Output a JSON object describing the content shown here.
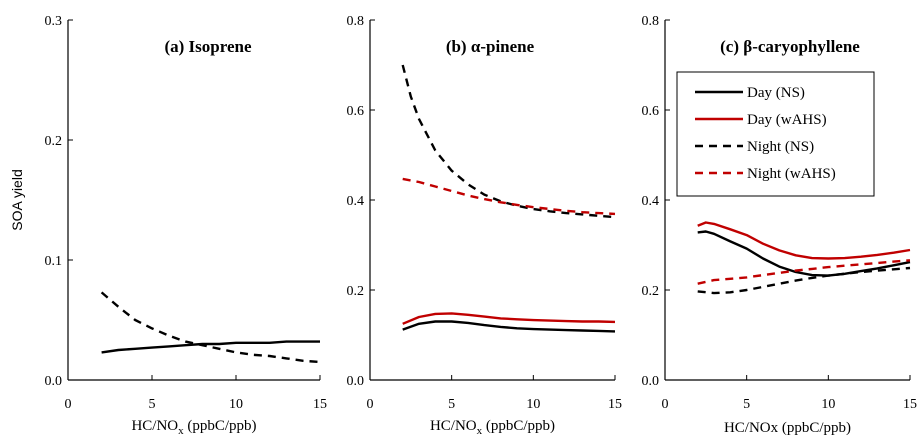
{
  "chart_data": [
    {
      "type": "line",
      "title": "(a) Isoprene",
      "xlabel": "HC/NO",
      "xlabel_sub": "x",
      "xlabel_tail": " (ppbC/ppb)",
      "ylabel": "SOA yield",
      "xlim": [
        0,
        15
      ],
      "ylim": [
        0,
        0.3
      ],
      "xticks": [
        "0",
        "5",
        "10",
        "15"
      ],
      "yticks": [
        "0.0",
        "0.1",
        "0.2",
        "0.3"
      ],
      "series": [
        {
          "style": "day-ns",
          "x": [
            2,
            3,
            4,
            5,
            6,
            7,
            8,
            9,
            10,
            11,
            12,
            13,
            14,
            15
          ],
          "y": [
            0.023,
            0.025,
            0.026,
            0.027,
            0.028,
            0.029,
            0.03,
            0.03,
            0.031,
            0.031,
            0.031,
            0.032,
            0.032,
            0.032
          ]
        },
        {
          "style": "night-ns",
          "x": [
            2,
            3,
            4,
            5,
            6,
            7,
            8,
            9,
            10,
            11,
            12,
            13,
            14,
            15
          ],
          "y": [
            0.073,
            0.061,
            0.05,
            0.043,
            0.037,
            0.032,
            0.029,
            0.026,
            0.023,
            0.021,
            0.02,
            0.018,
            0.016,
            0.015
          ]
        }
      ]
    },
    {
      "type": "line",
      "title": "(b) α-pinene",
      "xlabel": "HC/NO",
      "xlabel_sub": "x",
      "xlabel_tail": " (ppbC/ppb)",
      "ylabel": "",
      "xlim": [
        0,
        15
      ],
      "ylim": [
        0,
        0.8
      ],
      "xticks": [
        "0",
        "5",
        "10",
        "15"
      ],
      "yticks": [
        "0.0",
        "0.2",
        "0.4",
        "0.6",
        "0.8"
      ],
      "series": [
        {
          "style": "day-ns",
          "x": [
            2,
            3,
            4,
            5,
            6,
            7,
            8,
            9,
            10,
            11,
            12,
            13,
            14,
            15
          ],
          "y": [
            0.112,
            0.125,
            0.13,
            0.13,
            0.127,
            0.122,
            0.118,
            0.115,
            0.113,
            0.112,
            0.111,
            0.11,
            0.109,
            0.108
          ]
        },
        {
          "style": "day-wahs",
          "x": [
            2,
            3,
            4,
            5,
            6,
            7,
            8,
            9,
            10,
            11,
            12,
            13,
            14,
            15
          ],
          "y": [
            0.125,
            0.14,
            0.147,
            0.148,
            0.145,
            0.141,
            0.137,
            0.135,
            0.133,
            0.132,
            0.131,
            0.13,
            0.13,
            0.129
          ]
        },
        {
          "style": "night-ns",
          "x": [
            2,
            2.5,
            3,
            4,
            5,
            6,
            7,
            8,
            9,
            10,
            11,
            12,
            13,
            14,
            15
          ],
          "y": [
            0.7,
            0.63,
            0.58,
            0.51,
            0.465,
            0.435,
            0.412,
            0.397,
            0.387,
            0.38,
            0.375,
            0.371,
            0.368,
            0.365,
            0.362
          ]
        },
        {
          "style": "night-wahs",
          "x": [
            2,
            3,
            4,
            5,
            6,
            7,
            8,
            9,
            10,
            11,
            12,
            13,
            14,
            15
          ],
          "y": [
            0.447,
            0.44,
            0.43,
            0.42,
            0.41,
            0.402,
            0.395,
            0.389,
            0.384,
            0.38,
            0.376,
            0.373,
            0.371,
            0.369
          ]
        }
      ]
    },
    {
      "type": "line",
      "title": "(c) β-caryophyllene",
      "xlabel": "HC/NOx (ppbC/ppb)",
      "ylabel": "",
      "xlim": [
        0,
        15
      ],
      "ylim": [
        0,
        0.8
      ],
      "xticks": [
        "0",
        "5",
        "10",
        "15"
      ],
      "yticks": [
        "0.0",
        "0.2",
        "0.4",
        "0.6",
        "0.8"
      ],
      "legend": {
        "placement": "top-right",
        "entries": [
          {
            "style": "day-ns",
            "label": "Day (NS)"
          },
          {
            "style": "day-wahs",
            "label": "Day (wAHS)"
          },
          {
            "style": "night-ns",
            "label": "Night (NS)"
          },
          {
            "style": "night-wahs",
            "label": "Night (wAHS)"
          }
        ]
      },
      "series": [
        {
          "style": "day-ns",
          "x": [
            2,
            2.5,
            3,
            4,
            5,
            6,
            7,
            8,
            9,
            10,
            11,
            12,
            13,
            14,
            15
          ],
          "y": [
            0.328,
            0.33,
            0.325,
            0.308,
            0.292,
            0.27,
            0.252,
            0.24,
            0.233,
            0.232,
            0.236,
            0.242,
            0.248,
            0.255,
            0.262
          ]
        },
        {
          "style": "day-wahs",
          "x": [
            2,
            2.5,
            3,
            4,
            5,
            6,
            7,
            8,
            9,
            10,
            11,
            12,
            13,
            14,
            15
          ],
          "y": [
            0.343,
            0.35,
            0.347,
            0.335,
            0.322,
            0.303,
            0.288,
            0.277,
            0.271,
            0.27,
            0.271,
            0.274,
            0.278,
            0.283,
            0.289
          ]
        },
        {
          "style": "night-ns",
          "x": [
            2,
            3,
            4,
            5,
            6,
            7,
            8,
            9,
            10,
            11,
            12,
            13,
            14,
            15
          ],
          "y": [
            0.197,
            0.193,
            0.195,
            0.2,
            0.207,
            0.214,
            0.221,
            0.227,
            0.232,
            0.236,
            0.24,
            0.243,
            0.246,
            0.249
          ]
        },
        {
          "style": "night-wahs",
          "x": [
            2,
            3,
            4,
            5,
            6,
            7,
            8,
            9,
            10,
            11,
            12,
            13,
            14,
            15
          ],
          "y": [
            0.214,
            0.222,
            0.225,
            0.228,
            0.233,
            0.238,
            0.243,
            0.247,
            0.251,
            0.254,
            0.257,
            0.26,
            0.263,
            0.266
          ]
        }
      ]
    }
  ],
  "colors": {
    "day-ns": "#000000",
    "day-wahs": "#c00000",
    "night-ns": "#000000",
    "night-wahs": "#c00000",
    "axis": "#000000"
  }
}
